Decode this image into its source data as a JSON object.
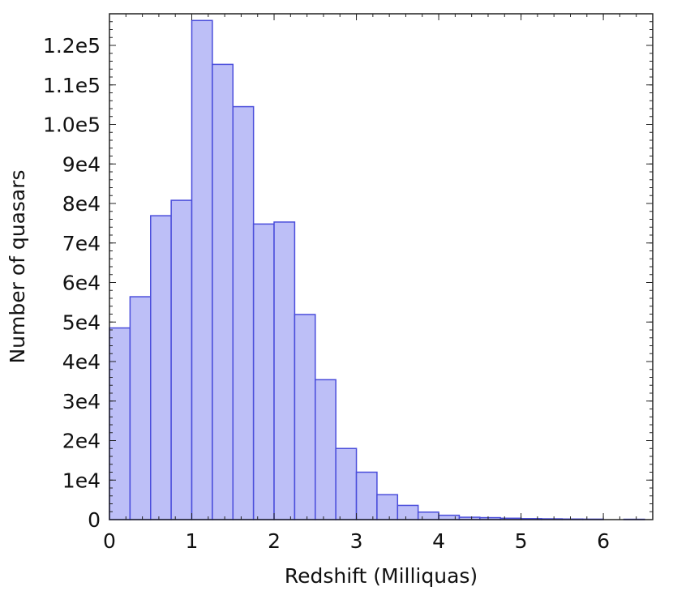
{
  "chart_data": {
    "type": "bar",
    "xlabel": "Redshift (Milliquas)",
    "ylabel": "Number of quasars",
    "xlim": [
      0,
      6.6
    ],
    "ylim": [
      0,
      128000
    ],
    "bin_width": 0.25,
    "x_ticks": [
      "0",
      "1",
      "2",
      "3",
      "4",
      "5",
      "6"
    ],
    "x_tick_values": [
      0,
      1,
      2,
      3,
      4,
      5,
      6
    ],
    "y_ticks": [
      "0",
      "1e4",
      "2e4",
      "3e4",
      "4e4",
      "5e4",
      "6e4",
      "7e4",
      "8e4",
      "9e4",
      "1.0e5",
      "1.1e5",
      "1.2e5"
    ],
    "y_tick_values": [
      0,
      10000,
      20000,
      30000,
      40000,
      50000,
      60000,
      70000,
      80000,
      90000,
      100000,
      110000,
      120000
    ],
    "bin_starts": [
      0,
      0.25,
      0.5,
      0.75,
      1.0,
      1.25,
      1.5,
      1.75,
      2.0,
      2.25,
      2.5,
      2.75,
      3.0,
      3.25,
      3.5,
      3.75,
      4.0,
      4.25,
      4.5,
      4.75,
      5.0,
      5.25,
      5.5,
      5.75,
      6.0,
      6.25
    ],
    "values": [
      48500,
      56400,
      76900,
      80800,
      126300,
      115200,
      104500,
      74800,
      75300,
      51900,
      35400,
      18000,
      12000,
      6300,
      3600,
      1900,
      1100,
      600,
      500,
      350,
      250,
      200,
      150,
      120,
      0,
      90
    ],
    "bar_fill": "#bdbff7",
    "bar_stroke": "#4a4ddb",
    "grid": false,
    "legend": "none"
  }
}
